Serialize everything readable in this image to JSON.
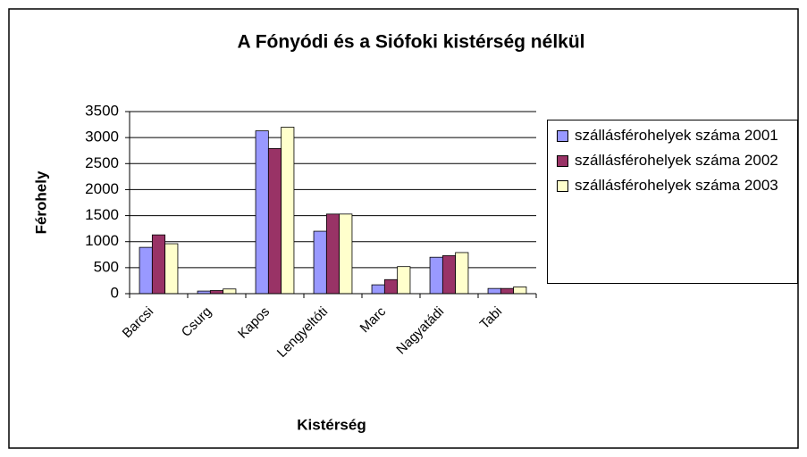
{
  "chart_data": {
    "type": "bar",
    "title": "A Fónyódi és a Siófoki kistérség nélkül",
    "x_label": "Kistérség",
    "y_label": "Férohely",
    "categories": [
      "Barcsi",
      "Csurg",
      "Kapos",
      "Lengyeltóti",
      "Marc",
      "Nagyatádi",
      "Tabi"
    ],
    "series": [
      {
        "name": "szállásférohelyek száma 2001",
        "color": "#9999ff",
        "values": [
          890,
          50,
          3130,
          1200,
          170,
          700,
          100
        ]
      },
      {
        "name": "szállásférohelyek száma 2002",
        "color": "#993366",
        "values": [
          1130,
          60,
          2790,
          1530,
          270,
          730,
          100
        ]
      },
      {
        "name": "szállásférohelyek száma 2003",
        "color": "#ffffcc",
        "values": [
          960,
          90,
          3200,
          1530,
          520,
          790,
          130
        ]
      }
    ],
    "ylim": [
      0,
      3500
    ],
    "yticks": [
      0,
      500,
      1000,
      1500,
      2000,
      2500,
      3000,
      3500
    ],
    "grid": true
  }
}
